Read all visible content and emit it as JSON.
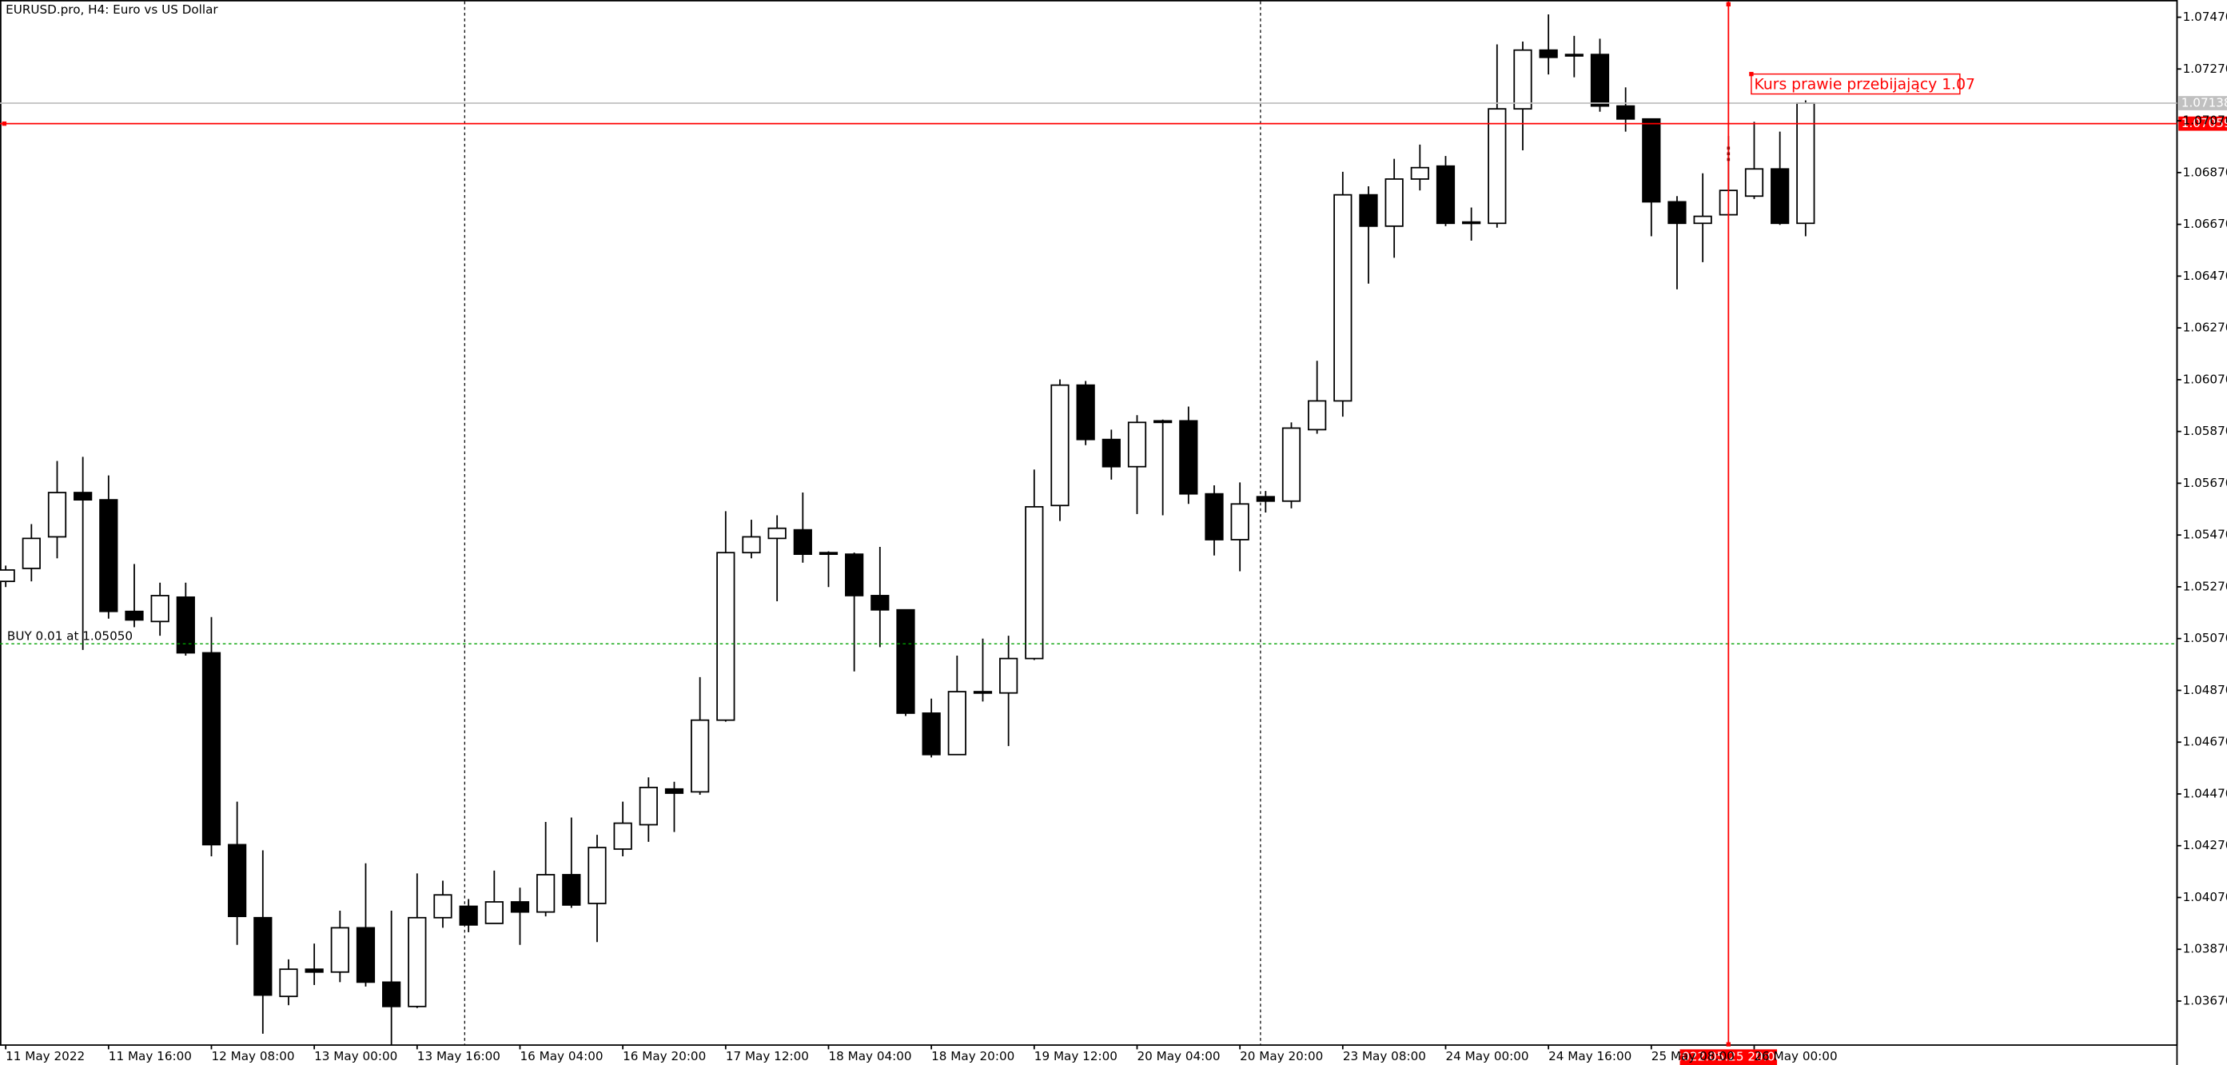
{
  "chart_data": {
    "type": "candlestick",
    "title": "EURUSD.pro, H4:  Euro vs US Dollar",
    "categories": [
      "11 May 2022",
      null,
      null,
      null,
      "11 May 16:00",
      null,
      null,
      null,
      "12 May 08:00",
      null,
      null,
      null,
      "13 May 00:00",
      null,
      null,
      null,
      "13 May 16:00",
      null,
      null,
      null,
      "16 May 04:00",
      null,
      null,
      null,
      "16 May 20:00",
      null,
      null,
      null,
      "17 May 12:00",
      null,
      null,
      null,
      "18 May 04:00",
      null,
      null,
      null,
      "18 May 20:00",
      null,
      null,
      null,
      "19 May 12:00",
      null,
      null,
      null,
      "20 May 04:00",
      null,
      null,
      null,
      "20 May 20:00",
      null,
      null,
      null,
      "23 May 08:00",
      null,
      null,
      null,
      "24 May 00:00",
      null,
      null,
      null,
      "24 May 16:00",
      null,
      null,
      null,
      "25 May 08:00",
      null,
      null,
      null,
      "26 May 00:00",
      null,
      null
    ],
    "open": [
      1.05291,
      1.05341,
      1.05463,
      1.05634,
      1.05606,
      1.05175,
      1.05136,
      1.0523,
      1.05015,
      1.04274,
      1.03992,
      1.03688,
      1.03793,
      1.03782,
      1.03953,
      1.03743,
      1.03649,
      1.03992,
      1.04036,
      1.0397,
      1.04053,
      1.04014,
      1.04158,
      1.04047,
      1.04257,
      1.04351,
      1.04489,
      1.04478,
      1.04755,
      1.05402,
      1.05457,
      1.0549,
      1.05402,
      1.05396,
      1.05236,
      1.05181,
      1.04782,
      1.04622,
      1.0486,
      1.0486,
      1.04993,
      1.05584,
      1.06049,
      1.05839,
      1.05734,
      1.05911,
      1.05911,
      1.05629,
      1.05452,
      1.05618,
      1.05601,
      1.05877,
      1.05988,
      1.06784,
      1.06663,
      1.06845,
      1.06895,
      1.06679,
      1.06674,
      1.07116,
      1.07343,
      1.07321,
      1.07326,
      1.07127,
      1.07077,
      1.06757,
      1.06674,
      1.06707,
      1.06779,
      1.06884,
      1.06674
    ],
    "high": [
      1.05352,
      1.05512,
      1.05756,
      1.05772,
      1.057,
      1.05358,
      1.05286,
      1.05286,
      1.05153,
      1.0444,
      1.04252,
      1.03831,
      1.03892,
      1.04019,
      1.04202,
      1.04019,
      1.04163,
      1.04135,
      1.04064,
      1.04174,
      1.04108,
      1.04362,
      1.04379,
      1.04312,
      1.0444,
      1.04534,
      1.04517,
      1.04921,
      1.05562,
      1.05529,
      1.05546,
      1.05634,
      1.05407,
      1.05402,
      1.05424,
      1.05181,
      1.04838,
      1.05004,
      1.0507,
      1.05081,
      1.05723,
      1.06071,
      1.06065,
      1.05877,
      1.05933,
      1.05916,
      1.05966,
      1.05662,
      1.05673,
      1.0564,
      1.05905,
      1.06143,
      1.06873,
      1.06817,
      1.06923,
      1.06978,
      1.06934,
      1.06735,
      1.07365,
      1.07376,
      1.07481,
      1.07398,
      1.07387,
      1.07199,
      1.07077,
      1.06779,
      1.06867,
      1.07011,
      1.07066,
      1.07028,
      1.07149
    ],
    "low": [
      1.05269,
      1.05291,
      1.0538,
      1.05026,
      1.05147,
      1.05114,
      1.05081,
      1.05004,
      1.04229,
      1.03887,
      1.03544,
      1.03654,
      1.03732,
      1.03743,
      1.03726,
      1.035,
      1.03643,
      1.03953,
      1.03936,
      1.0397,
      1.03887,
      1.03997,
      1.0403,
      1.03898,
      1.04229,
      1.04285,
      1.04323,
      1.04467,
      1.04749,
      1.0538,
      1.05214,
      1.05363,
      1.05269,
      1.04943,
      1.05037,
      1.04771,
      1.04611,
      1.04622,
      1.04827,
      1.04655,
      1.04987,
      1.05524,
      1.05817,
      1.05684,
      1.05551,
      1.05546,
      1.0559,
      1.05391,
      1.0533,
      1.05557,
      1.05573,
      1.05861,
      1.05927,
      1.06441,
      1.06541,
      1.06801,
      1.06663,
      1.06607,
      1.06657,
      1.06956,
      1.07249,
      1.07238,
      1.07105,
      1.07028,
      1.06624,
      1.06419,
      1.06524,
      1.06707,
      1.06768,
      1.06668,
      1.06624
    ],
    "close": [
      1.05335,
      1.05457,
      1.05634,
      1.05606,
      1.05175,
      1.05142,
      1.05236,
      1.05015,
      1.04274,
      1.03997,
      1.03693,
      1.03793,
      1.03782,
      1.03953,
      1.03743,
      1.03649,
      1.03992,
      1.0408,
      1.03964,
      1.04053,
      1.04014,
      1.04158,
      1.04041,
      1.04263,
      1.04357,
      1.04495,
      1.04473,
      1.04755,
      1.05402,
      1.05463,
      1.05496,
      1.05396,
      1.05396,
      1.05236,
      1.05181,
      1.04782,
      1.04622,
      1.04865,
      1.04865,
      1.04993,
      1.05579,
      1.06049,
      1.05839,
      1.05734,
      1.05905,
      1.05905,
      1.05629,
      1.05452,
      1.0559,
      1.05601,
      1.05883,
      1.05988,
      1.06784,
      1.06663,
      1.06845,
      1.06889,
      1.06674,
      1.06674,
      1.07116,
      1.07343,
      1.07315,
      1.07326,
      1.07127,
      1.07077,
      1.06757,
      1.06674,
      1.06701,
      1.06801,
      1.06884,
      1.06674,
      1.07138
    ],
    "up_color": "#ffffff",
    "down_color": "#000000",
    "ylim": [
      1.035,
      1.07531
    ],
    "yticks": [
      {
        "value": 1.0747,
        "label": "1.07470"
      },
      {
        "value": 1.0727,
        "label": "1.07270"
      },
      {
        "value": 1.0707,
        "label": "1.07070"
      },
      {
        "value": 1.0687,
        "label": "1.06870"
      },
      {
        "value": 1.0667,
        "label": "1.06670"
      },
      {
        "value": 1.0647,
        "label": "1.06470"
      },
      {
        "value": 1.0627,
        "label": "1.06270"
      },
      {
        "value": 1.0607,
        "label": "1.06070"
      },
      {
        "value": 1.0587,
        "label": "1.05870"
      },
      {
        "value": 1.0567,
        "label": "1.05670"
      },
      {
        "value": 1.0547,
        "label": "1.05470"
      },
      {
        "value": 1.0527,
        "label": "1.05270"
      },
      {
        "value": 1.0507,
        "label": "1.05070"
      },
      {
        "value": 1.0487,
        "label": "1.04870"
      },
      {
        "value": 1.0467,
        "label": "1.04670"
      },
      {
        "value": 1.0447,
        "label": "1.04470"
      },
      {
        "value": 1.0427,
        "label": "1.04270"
      },
      {
        "value": 1.0407,
        "label": "1.04070"
      },
      {
        "value": 1.0387,
        "label": "1.03870"
      },
      {
        "value": 1.0367,
        "label": "1.03670"
      }
    ],
    "grid": false,
    "price_lines": [
      {
        "value": 1.07138,
        "color": "#c0c0c0"
      },
      {
        "value": 1.07059,
        "color": "#ff0000"
      }
    ],
    "order_line": {
      "label": "BUY 0.01 at 1.05050",
      "value": 1.0505,
      "color": "#00a000"
    },
    "cursor_label": "2022.05.25 20:00",
    "annotation": {
      "text": "Kurs prawie przebijający 1.07",
      "color": "#ff0000"
    }
  }
}
